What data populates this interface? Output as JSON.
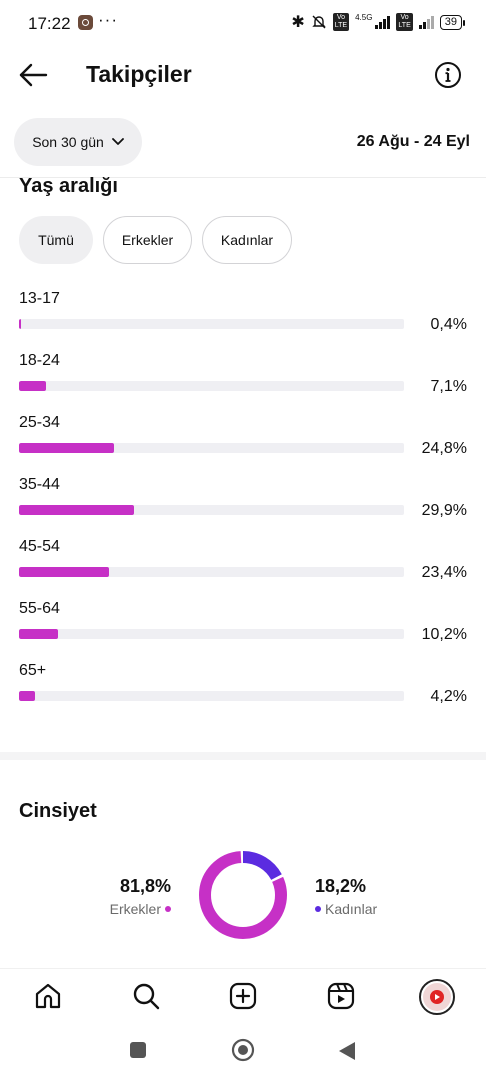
{
  "status_bar": {
    "time": "17:22",
    "dots": "···",
    "network": "4.5G",
    "lte_label": "Vo\nLTE",
    "battery": "39"
  },
  "header": {
    "title": "Takipçiler"
  },
  "filters": {
    "period_label": "Son 30 gün",
    "date_range": "26 Ağu - 24 Eyl"
  },
  "age_section": {
    "title": "Yaş aralığı",
    "tabs": [
      {
        "label": "Tümü",
        "active": true
      },
      {
        "label": "Erkekler",
        "active": false
      },
      {
        "label": "Kadınlar",
        "active": false
      }
    ],
    "rows": [
      {
        "label": "13-17",
        "percent_text": "0,4%",
        "value": 0.4
      },
      {
        "label": "18-24",
        "percent_text": "7,1%",
        "value": 7.1
      },
      {
        "label": "25-34",
        "percent_text": "24,8%",
        "value": 24.8
      },
      {
        "label": "35-44",
        "percent_text": "29,9%",
        "value": 29.9
      },
      {
        "label": "45-54",
        "percent_text": "23,4%",
        "value": 23.4
      },
      {
        "label": "55-64",
        "percent_text": "10,2%",
        "value": 10.2
      },
      {
        "label": "65+",
        "percent_text": "4,2%",
        "value": 4.2
      }
    ],
    "bar_color": "#c630c6"
  },
  "gender_section": {
    "title": "Cinsiyet",
    "men": {
      "value_text": "81,8%",
      "label": "Erkekler",
      "value": 81.8,
      "color": "#c630c6"
    },
    "women": {
      "value_text": "18,2%",
      "label": "Kadınlar",
      "value": 18.2,
      "color": "#5b2be0"
    }
  },
  "bottom_nav": {
    "items": [
      "home-icon",
      "search-icon",
      "create-icon",
      "reels-icon",
      "profile-avatar"
    ]
  }
}
